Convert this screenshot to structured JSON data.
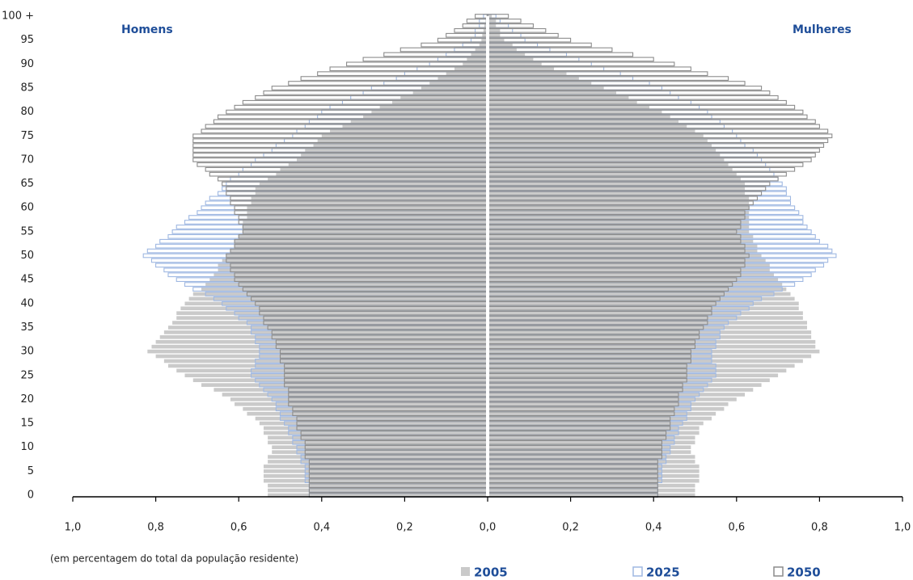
{
  "chart_data": {
    "type": "pyramid",
    "left_label": "Homens",
    "right_label": "Mulheres",
    "xlabel": "(em percentagem do total da população residente)",
    "categories": [
      0,
      null,
      null,
      null,
      null,
      5,
      null,
      null,
      null,
      null,
      10,
      null,
      null,
      null,
      null,
      15,
      null,
      null,
      null,
      null,
      20,
      null,
      null,
      null,
      null,
      25,
      null,
      null,
      null,
      null,
      30,
      null,
      null,
      null,
      null,
      35,
      null,
      null,
      null,
      null,
      40,
      null,
      null,
      null,
      null,
      45,
      null,
      null,
      null,
      null,
      50,
      null,
      null,
      null,
      null,
      55,
      null,
      null,
      null,
      null,
      60,
      null,
      null,
      null,
      null,
      65,
      null,
      null,
      null,
      null,
      70,
      null,
      null,
      null,
      null,
      75,
      null,
      null,
      null,
      null,
      80,
      null,
      null,
      null,
      null,
      85,
      null,
      null,
      null,
      null,
      90,
      null,
      null,
      null,
      null,
      95,
      null,
      null,
      null,
      null,
      "100 +"
    ],
    "xlim": [
      0,
      1
    ],
    "xticks": [
      {
        "value": 0,
        "label": "0,0"
      },
      {
        "value": 0.2,
        "label": "0,2"
      },
      {
        "value": 0.4,
        "label": "0,4"
      },
      {
        "value": 0.6,
        "label": "0,6"
      },
      {
        "value": 0.8,
        "label": "0,8"
      },
      {
        "value": 1,
        "label": "1,0"
      }
    ],
    "series": [
      {
        "name": "2005",
        "color": "#cacaca",
        "style": "filled",
        "men": [
          0.53,
          0.53,
          0.53,
          0.54,
          0.54,
          0.54,
          0.54,
          0.53,
          0.53,
          0.52,
          0.52,
          0.53,
          0.53,
          0.54,
          0.54,
          0.55,
          0.56,
          0.58,
          0.59,
          0.61,
          0.62,
          0.64,
          0.66,
          0.69,
          0.71,
          0.73,
          0.75,
          0.77,
          0.78,
          0.8,
          0.82,
          0.81,
          0.8,
          0.79,
          0.78,
          0.77,
          0.76,
          0.75,
          0.75,
          0.74,
          0.73,
          0.72,
          0.71,
          0.69,
          0.68,
          0.67,
          0.66,
          0.65,
          0.65,
          0.64,
          0.63,
          0.62,
          0.61,
          0.61,
          0.6,
          0.59,
          0.59,
          0.59,
          0.58,
          0.58,
          0.58,
          0.57,
          0.57,
          0.56,
          0.56,
          0.55,
          0.53,
          0.51,
          0.5,
          0.48,
          0.46,
          0.45,
          0.44,
          0.42,
          0.41,
          0.4,
          0.38,
          0.35,
          0.33,
          0.3,
          0.28,
          0.26,
          0.23,
          0.21,
          0.18,
          0.16,
          0.14,
          0.12,
          0.1,
          0.08,
          0.06,
          0.05,
          0.04,
          0.03,
          0.02,
          0.015,
          0.013,
          0.01,
          0.008,
          0.005,
          0.003
        ],
        "women": [
          0.5,
          0.5,
          0.5,
          0.51,
          0.51,
          0.51,
          0.51,
          0.5,
          0.5,
          0.49,
          0.49,
          0.5,
          0.5,
          0.51,
          0.51,
          0.52,
          0.54,
          0.55,
          0.57,
          0.58,
          0.6,
          0.62,
          0.64,
          0.66,
          0.68,
          0.7,
          0.72,
          0.74,
          0.76,
          0.78,
          0.8,
          0.79,
          0.79,
          0.78,
          0.78,
          0.77,
          0.77,
          0.76,
          0.76,
          0.75,
          0.75,
          0.74,
          0.73,
          0.72,
          0.71,
          0.7,
          0.69,
          0.68,
          0.68,
          0.67,
          0.66,
          0.65,
          0.65,
          0.64,
          0.64,
          0.63,
          0.63,
          0.63,
          0.63,
          0.63,
          0.63,
          0.63,
          0.63,
          0.62,
          0.62,
          0.62,
          0.61,
          0.6,
          0.59,
          0.58,
          0.57,
          0.56,
          0.55,
          0.54,
          0.53,
          0.52,
          0.5,
          0.48,
          0.46,
          0.44,
          0.42,
          0.39,
          0.36,
          0.34,
          0.31,
          0.28,
          0.25,
          0.22,
          0.19,
          0.16,
          0.13,
          0.11,
          0.09,
          0.07,
          0.06,
          0.04,
          0.03,
          0.03,
          0.02,
          0.02,
          0.01
        ]
      },
      {
        "name": "2025",
        "color": "#9fb8e2",
        "style": "outline",
        "men": [
          0.43,
          0.43,
          0.43,
          0.44,
          0.44,
          0.44,
          0.44,
          0.45,
          0.45,
          0.46,
          0.46,
          0.47,
          0.47,
          0.48,
          0.48,
          0.49,
          0.5,
          0.5,
          0.51,
          0.51,
          0.52,
          0.53,
          0.54,
          0.55,
          0.56,
          0.57,
          0.57,
          0.56,
          0.56,
          0.55,
          0.55,
          0.55,
          0.56,
          0.56,
          0.57,
          0.57,
          0.58,
          0.6,
          0.61,
          0.63,
          0.64,
          0.66,
          0.68,
          0.71,
          0.73,
          0.75,
          0.77,
          0.78,
          0.8,
          0.81,
          0.83,
          0.82,
          0.8,
          0.79,
          0.77,
          0.76,
          0.75,
          0.73,
          0.72,
          0.7,
          0.69,
          0.68,
          0.67,
          0.65,
          0.64,
          0.63,
          0.62,
          0.6,
          0.59,
          0.57,
          0.56,
          0.54,
          0.52,
          0.51,
          0.49,
          0.47,
          0.46,
          0.44,
          0.43,
          0.41,
          0.4,
          0.38,
          0.35,
          0.33,
          0.3,
          0.28,
          0.25,
          0.22,
          0.2,
          0.17,
          0.14,
          0.12,
          0.1,
          0.08,
          0.06,
          0.04,
          0.03,
          0.03,
          0.02,
          0.02,
          0.01
        ],
        "women": [
          0.41,
          0.41,
          0.41,
          0.42,
          0.42,
          0.42,
          0.42,
          0.43,
          0.43,
          0.44,
          0.44,
          0.45,
          0.45,
          0.46,
          0.46,
          0.47,
          0.48,
          0.48,
          0.49,
          0.49,
          0.5,
          0.51,
          0.52,
          0.53,
          0.54,
          0.55,
          0.55,
          0.55,
          0.54,
          0.54,
          0.54,
          0.55,
          0.55,
          0.56,
          0.56,
          0.57,
          0.58,
          0.6,
          0.61,
          0.63,
          0.64,
          0.66,
          0.69,
          0.71,
          0.74,
          0.76,
          0.78,
          0.79,
          0.81,
          0.82,
          0.84,
          0.83,
          0.82,
          0.8,
          0.79,
          0.78,
          0.77,
          0.76,
          0.76,
          0.75,
          0.74,
          0.73,
          0.73,
          0.72,
          0.72,
          0.71,
          0.7,
          0.69,
          0.68,
          0.67,
          0.66,
          0.65,
          0.64,
          0.62,
          0.61,
          0.6,
          0.59,
          0.57,
          0.56,
          0.54,
          0.53,
          0.51,
          0.49,
          0.46,
          0.44,
          0.42,
          0.39,
          0.35,
          0.32,
          0.28,
          0.25,
          0.22,
          0.19,
          0.15,
          0.12,
          0.09,
          0.08,
          0.06,
          0.05,
          0.03,
          0.02
        ]
      },
      {
        "name": "2050",
        "color": "#8c8c8c",
        "style": "outline",
        "men": [
          0.43,
          0.43,
          0.43,
          0.43,
          0.43,
          0.43,
          0.43,
          0.43,
          0.44,
          0.44,
          0.44,
          0.44,
          0.45,
          0.45,
          0.46,
          0.46,
          0.46,
          0.47,
          0.47,
          0.48,
          0.48,
          0.48,
          0.48,
          0.49,
          0.49,
          0.49,
          0.49,
          0.49,
          0.5,
          0.5,
          0.5,
          0.51,
          0.51,
          0.52,
          0.52,
          0.53,
          0.54,
          0.54,
          0.55,
          0.55,
          0.56,
          0.57,
          0.58,
          0.59,
          0.6,
          0.61,
          0.61,
          0.62,
          0.62,
          0.63,
          0.63,
          0.62,
          0.61,
          0.61,
          0.6,
          0.59,
          0.59,
          0.6,
          0.6,
          0.61,
          0.61,
          0.62,
          0.62,
          0.63,
          0.63,
          0.64,
          0.65,
          0.67,
          0.68,
          0.7,
          0.71,
          0.71,
          0.71,
          0.71,
          0.71,
          0.71,
          0.69,
          0.68,
          0.66,
          0.65,
          0.63,
          0.61,
          0.59,
          0.56,
          0.54,
          0.52,
          0.48,
          0.45,
          0.41,
          0.38,
          0.34,
          0.3,
          0.25,
          0.21,
          0.16,
          0.12,
          0.1,
          0.08,
          0.06,
          0.05,
          0.03
        ],
        "women": [
          0.41,
          0.41,
          0.41,
          0.41,
          0.41,
          0.41,
          0.41,
          0.41,
          0.42,
          0.42,
          0.42,
          0.42,
          0.43,
          0.43,
          0.44,
          0.44,
          0.44,
          0.45,
          0.45,
          0.46,
          0.46,
          0.46,
          0.47,
          0.47,
          0.48,
          0.48,
          0.48,
          0.48,
          0.49,
          0.49,
          0.49,
          0.5,
          0.5,
          0.51,
          0.51,
          0.52,
          0.53,
          0.53,
          0.54,
          0.54,
          0.55,
          0.56,
          0.57,
          0.58,
          0.59,
          0.6,
          0.61,
          0.61,
          0.62,
          0.62,
          0.63,
          0.62,
          0.62,
          0.61,
          0.61,
          0.6,
          0.61,
          0.61,
          0.62,
          0.62,
          0.63,
          0.64,
          0.65,
          0.66,
          0.67,
          0.68,
          0.7,
          0.72,
          0.74,
          0.76,
          0.78,
          0.79,
          0.8,
          0.81,
          0.82,
          0.83,
          0.82,
          0.8,
          0.79,
          0.77,
          0.76,
          0.74,
          0.72,
          0.7,
          0.68,
          0.66,
          0.62,
          0.58,
          0.53,
          0.49,
          0.45,
          0.4,
          0.35,
          0.3,
          0.25,
          0.2,
          0.17,
          0.14,
          0.11,
          0.08,
          0.05
        ]
      }
    ]
  }
}
